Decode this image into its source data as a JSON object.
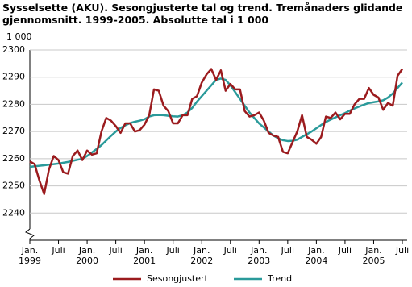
{
  "chart_data": {
    "type": "line",
    "title": "Sysselsette (AKU).  Sesongjusterte tal og trend. Tremånaders glidande gjennomsnitt. 1999-2005. Absolutte tal i 1 000",
    "y_unit": "1 000",
    "categories": [
      "Jan. 1999",
      null,
      null,
      null,
      null,
      null,
      "Juli",
      null,
      null,
      null,
      null,
      null,
      "Jan. 2000",
      null,
      null,
      null,
      null,
      null,
      "Juli",
      null,
      null,
      null,
      null,
      null,
      "Jan. 2001",
      null,
      null,
      null,
      null,
      null,
      "Juli",
      null,
      null,
      null,
      null,
      null,
      "Jan. 2002",
      null,
      null,
      null,
      null,
      null,
      "Juli",
      null,
      null,
      null,
      null,
      null,
      "Jan. 2003",
      null,
      null,
      null,
      null,
      null,
      "Juli",
      null,
      null,
      null,
      null,
      null,
      "Jan. 2004",
      null,
      null,
      null,
      null,
      null,
      "Juli",
      null,
      null,
      null,
      null,
      null,
      "Jan. 2005",
      null,
      null,
      null,
      null,
      null,
      "Juli"
    ],
    "series": [
      {
        "name": "Sesongjustert",
        "color": "#9b1b1e",
        "values": [
          2259,
          2258,
          2252,
          2247,
          2256,
          2261,
          2259.5,
          2255,
          2254.5,
          2261,
          2263,
          2259.5,
          2263,
          2261.5,
          2262,
          2270,
          2275,
          2274,
          2272,
          2269.5,
          2273,
          2273,
          2270,
          2270.5,
          2272.5,
          2276,
          2285.5,
          2285,
          2279.5,
          2277.5,
          2273,
          2273,
          2276,
          2276,
          2282,
          2283,
          2288,
          2291,
          2293,
          2289,
          2292.5,
          2285,
          2287.5,
          2285.5,
          2285.5,
          2277.5,
          2275.5,
          2276,
          2277,
          2274,
          2269.5,
          2268.5,
          2268,
          2262.5,
          2262,
          2266,
          2270,
          2276,
          2268,
          2267,
          2265.5,
          2268,
          2275.5,
          2275,
          2277,
          2274.5,
          2276.5,
          2276.5,
          2280,
          2282,
          2282,
          2286,
          2283.5,
          2282.5,
          2278,
          2280.5,
          2279.5,
          2290.5,
          2293
        ]
      },
      {
        "name": "Trend",
        "color": "#2a9a9a",
        "values": [
          2257.0,
          2257.2,
          2257.4,
          2257.6,
          2257.8,
          2258.0,
          2258.2,
          2258.5,
          2258.8,
          2259.2,
          2259.6,
          2260.0,
          2261.0,
          2262.3,
          2263.6,
          2265.0,
          2266.7,
          2268.4,
          2270.0,
          2271.3,
          2272.3,
          2273.1,
          2273.6,
          2274.0,
          2274.5,
          2275.5,
          2276.0,
          2276.1,
          2276.0,
          2275.8,
          2275.6,
          2275.5,
          2276.0,
          2277.0,
          2278.7,
          2281.0,
          2283.0,
          2285.0,
          2287.0,
          2289.0,
          2289.5,
          2289.0,
          2287.0,
          2284.5,
          2282.0,
          2279.5,
          2277.0,
          2275.0,
          2273.0,
          2271.5,
          2270.0,
          2268.5,
          2267.5,
          2266.8,
          2266.5,
          2266.6,
          2267.0,
          2268.0,
          2269.0,
          2270.0,
          2271.2,
          2272.4,
          2273.5,
          2274.4,
          2275.2,
          2276.0,
          2276.8,
          2277.7,
          2278.5,
          2279.2,
          2279.9,
          2280.5,
          2280.8,
          2281.1,
          2281.5,
          2282.5,
          2284.0,
          2286.0,
          2288.0
        ]
      }
    ],
    "ylim": [
      2230,
      2300
    ],
    "yticks": [
      2240,
      2250,
      2260,
      2270,
      2280,
      2290,
      2300
    ],
    "grid": true
  }
}
